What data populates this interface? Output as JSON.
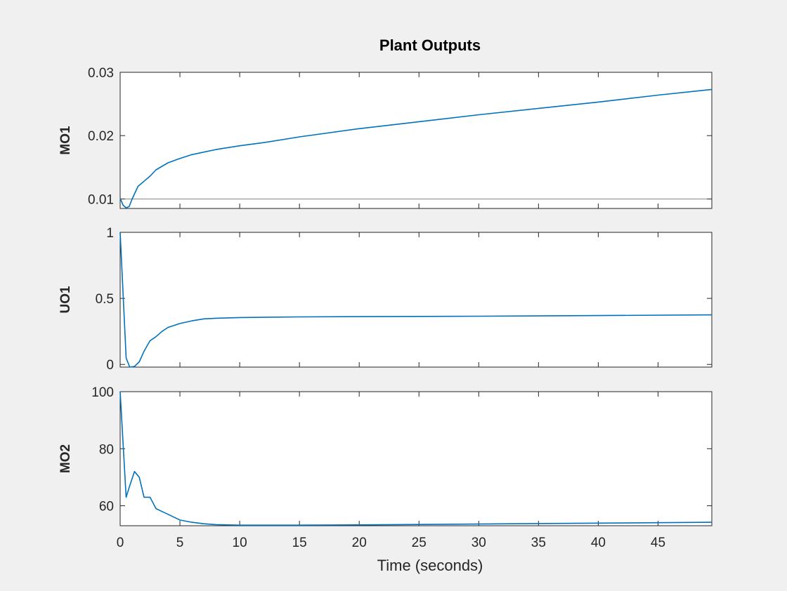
{
  "figure": {
    "title": "Plant Outputs",
    "xlabel": "Time (seconds)",
    "background": "#f0f0f0",
    "line_color": "#0072bd"
  },
  "chart_data": [
    {
      "type": "line",
      "ylabel": "MO1",
      "xlim": [
        0,
        49.5
      ],
      "ylim": [
        0.0085,
        0.03
      ],
      "yticks": [
        0.01,
        0.02,
        0.03
      ],
      "ytick_labels": [
        "0.01",
        "0.02",
        "0.03"
      ],
      "xticks": [
        0,
        5,
        10,
        15,
        20,
        25,
        30,
        35,
        40,
        45
      ],
      "show_xtick_labels": false,
      "reference_line": 0.01,
      "series": [
        {
          "x": [
            0,
            0.25,
            0.5,
            0.75,
            1,
            1.5,
            2,
            2.5,
            3,
            4,
            5,
            6,
            7,
            8,
            10,
            12,
            15,
            20,
            25,
            30,
            35,
            40,
            45,
            49.5
          ],
          "y": [
            0.0101,
            0.009,
            0.0086,
            0.0088,
            0.01,
            0.012,
            0.0128,
            0.0136,
            0.0146,
            0.0157,
            0.0164,
            0.017,
            0.0174,
            0.0178,
            0.0184,
            0.0189,
            0.0198,
            0.0211,
            0.0222,
            0.0233,
            0.0243,
            0.0253,
            0.0264,
            0.0273
          ]
        }
      ]
    },
    {
      "type": "line",
      "ylabel": "UO1",
      "xlim": [
        0,
        49.5
      ],
      "ylim": [
        -0.02,
        1
      ],
      "yticks": [
        0,
        0.5,
        1
      ],
      "ytick_labels": [
        "0",
        "0.5",
        "1"
      ],
      "xticks": [
        0,
        5,
        10,
        15,
        20,
        25,
        30,
        35,
        40,
        45
      ],
      "show_xtick_labels": false,
      "series": [
        {
          "x": [
            0,
            0.5,
            0.8,
            1.2,
            1.6,
            2,
            2.5,
            3,
            3.5,
            4,
            5,
            6,
            7,
            8,
            10,
            15,
            20,
            30,
            40,
            49.5
          ],
          "y": [
            1,
            0.05,
            -0.02,
            -0.015,
            0.02,
            0.1,
            0.18,
            0.21,
            0.25,
            0.28,
            0.31,
            0.33,
            0.345,
            0.35,
            0.355,
            0.36,
            0.362,
            0.365,
            0.37,
            0.375
          ]
        }
      ]
    },
    {
      "type": "line",
      "ylabel": "MO2",
      "xlim": [
        0,
        49.5
      ],
      "ylim": [
        53,
        100
      ],
      "yticks": [
        60,
        80,
        100
      ],
      "ytick_labels": [
        "60",
        "80",
        "100"
      ],
      "xticks": [
        0,
        5,
        10,
        15,
        20,
        25,
        30,
        35,
        40,
        45
      ],
      "xtick_labels": [
        "0",
        "5",
        "10",
        "15",
        "20",
        "25",
        "30",
        "35",
        "40",
        "45"
      ],
      "show_xtick_labels": true,
      "series": [
        {
          "x": [
            0,
            0.5,
            0.8,
            1.2,
            1.6,
            2,
            2.5,
            3,
            3.5,
            4,
            5,
            6,
            7,
            8,
            10,
            15,
            20,
            30,
            40,
            49.5
          ],
          "y": [
            100,
            63,
            67,
            72,
            70,
            63,
            63,
            59,
            58,
            57,
            55,
            54.2,
            53.7,
            53.4,
            53.2,
            53.2,
            53.3,
            53.6,
            53.9,
            54.2
          ]
        }
      ]
    }
  ]
}
